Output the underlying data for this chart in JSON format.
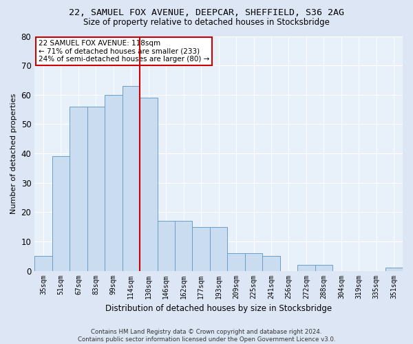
{
  "title1": "22, SAMUEL FOX AVENUE, DEEPCAR, SHEFFIELD, S36 2AG",
  "title2": "Size of property relative to detached houses in Stocksbridge",
  "xlabel": "Distribution of detached houses by size in Stocksbridge",
  "ylabel": "Number of detached properties",
  "categories": [
    "35sqm",
    "51sqm",
    "67sqm",
    "83sqm",
    "99sqm",
    "114sqm",
    "130sqm",
    "146sqm",
    "162sqm",
    "177sqm",
    "193sqm",
    "209sqm",
    "225sqm",
    "241sqm",
    "256sqm",
    "272sqm",
    "288sqm",
    "304sqm",
    "319sqm",
    "335sqm",
    "351sqm"
  ],
  "values": [
    5,
    39,
    56,
    56,
    60,
    63,
    59,
    17,
    17,
    15,
    15,
    6,
    6,
    5,
    0,
    2,
    2,
    0,
    0,
    0,
    1
  ],
  "bar_color": "#c9dcf0",
  "bar_edge_color": "#6a9ec8",
  "vline_x": 6,
  "vline_color": "#cc0000",
  "annotation_text": "22 SAMUEL FOX AVENUE: 118sqm\n← 71% of detached houses are smaller (233)\n24% of semi-detached houses are larger (80) →",
  "annotation_box_color": "#ffffff",
  "annotation_box_edge": "#cc0000",
  "ylim": [
    0,
    80
  ],
  "yticks": [
    0,
    10,
    20,
    30,
    40,
    50,
    60,
    70,
    80
  ],
  "footer": "Contains HM Land Registry data © Crown copyright and database right 2024.\nContains public sector information licensed under the Open Government Licence v3.0.",
  "bg_color": "#dce6f5",
  "plot_bg_color": "#e8f0fa",
  "grid_color": "#ffffff",
  "title1_fontsize": 9.5,
  "title2_fontsize": 8.5
}
